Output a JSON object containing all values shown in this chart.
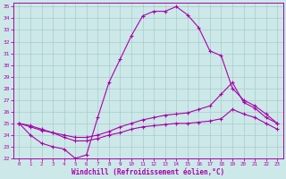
{
  "xlabel": "Windchill (Refroidissement éolien,°C)",
  "xlim": [
    -0.5,
    23.5
  ],
  "ylim": [
    22,
    35.3
  ],
  "xticks": [
    0,
    1,
    2,
    3,
    4,
    5,
    6,
    7,
    8,
    9,
    10,
    11,
    12,
    13,
    14,
    15,
    16,
    17,
    18,
    19,
    20,
    21,
    22,
    23
  ],
  "yticks": [
    22,
    23,
    24,
    25,
    26,
    27,
    28,
    29,
    30,
    31,
    32,
    33,
    34,
    35
  ],
  "bg_color": "#cce8e8",
  "line_color": "#aa00aa",
  "grid_color": "#aacccc",
  "line1_x": [
    0,
    1,
    2,
    3,
    4,
    5,
    6,
    7,
    8,
    9,
    10,
    11,
    12,
    13,
    14,
    15,
    16,
    17,
    18,
    19,
    20,
    21,
    22,
    23
  ],
  "line1_y": [
    25.0,
    24.0,
    23.3,
    23.0,
    22.8,
    22.0,
    22.3,
    25.5,
    28.5,
    30.5,
    32.5,
    34.2,
    34.6,
    34.6,
    35.0,
    34.3,
    33.2,
    31.2,
    30.8,
    28.0,
    27.0,
    26.5,
    25.8,
    25.0
  ],
  "line2_x": [
    0,
    1,
    2,
    3,
    4,
    5,
    6,
    7,
    8,
    9,
    10,
    11,
    12,
    13,
    14,
    15,
    16,
    17,
    18,
    19,
    20,
    21,
    22,
    23
  ],
  "line2_y": [
    25.0,
    24.8,
    24.5,
    24.2,
    24.0,
    23.8,
    23.8,
    24.0,
    24.3,
    24.7,
    25.0,
    25.3,
    25.5,
    25.7,
    25.8,
    25.9,
    26.2,
    26.5,
    27.5,
    28.5,
    26.8,
    26.3,
    25.5,
    25.0
  ],
  "line3_x": [
    0,
    1,
    2,
    3,
    4,
    5,
    6,
    7,
    8,
    9,
    10,
    11,
    12,
    13,
    14,
    15,
    16,
    17,
    18,
    19,
    20,
    21,
    22,
    23
  ],
  "line3_y": [
    25.0,
    24.7,
    24.4,
    24.2,
    23.8,
    23.5,
    23.5,
    23.7,
    24.0,
    24.2,
    24.5,
    24.7,
    24.8,
    24.9,
    25.0,
    25.0,
    25.1,
    25.2,
    25.4,
    26.2,
    25.8,
    25.5,
    25.0,
    24.5
  ]
}
